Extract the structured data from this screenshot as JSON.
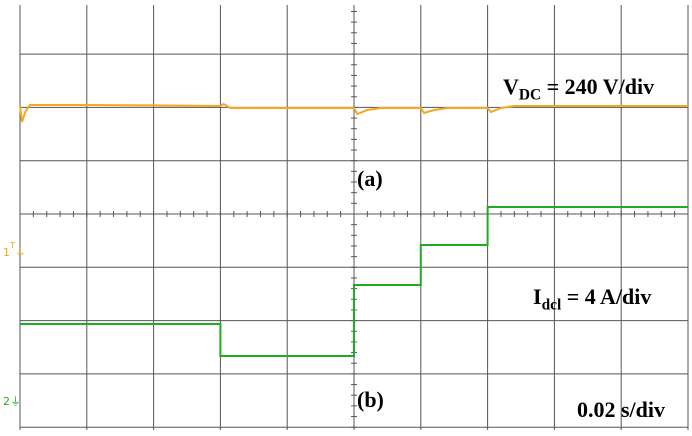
{
  "chart_data": [
    {
      "type": "line",
      "panel_label": "(a)",
      "scale_label_main": "V",
      "scale_label_sub": "DC",
      "scale_label_rest": " = 240 V/div",
      "color": "#f5a623",
      "x_divisions": 10,
      "y_divisions_visible": 4,
      "x_unit": "div",
      "y_unit": "div",
      "series": [
        {
          "x": [
            0.0,
            0.03,
            0.08,
            0.15,
            0.4,
            1.0,
            2.0,
            3.0,
            3.05,
            3.15,
            3.3,
            4.0,
            5.0,
            5.05,
            5.2,
            5.4,
            6.0,
            6.05,
            6.2,
            6.4,
            7.0,
            7.05,
            7.2,
            7.4,
            10.0
          ],
          "y": [
            0.0,
            -0.8,
            -0.3,
            0.05,
            0.05,
            0.05,
            0.03,
            0.0,
            0.1,
            -0.1,
            -0.1,
            -0.1,
            -0.1,
            -0.4,
            -0.2,
            -0.1,
            -0.1,
            -0.35,
            -0.2,
            -0.1,
            -0.1,
            -0.3,
            -0.1,
            0.0,
            0.0
          ]
        }
      ]
    },
    {
      "type": "line",
      "panel_label": "(b)",
      "scale_label_main": "I",
      "scale_label_sub": "dcl",
      "scale_label_rest": " = 4 A/div",
      "color": "#22aa22",
      "x_divisions": 10,
      "x_unit": "div",
      "y_unit": "div",
      "series": [
        {
          "x": [
            0.0,
            3.0,
            3.0,
            5.0,
            5.0,
            6.0,
            6.0,
            7.0,
            7.0,
            10.0
          ],
          "y": [
            -3.6,
            -3.6,
            -4.6,
            -4.6,
            -2.1,
            -2.1,
            -1.0,
            -1.0,
            0.2,
            0.2
          ]
        }
      ]
    }
  ],
  "time_scale": "0.02 s/div",
  "channel_markers": {
    "ch1": "1",
    "ch1_top": "T",
    "ch2": "2"
  },
  "colors": {
    "grid": "#555555",
    "ch1": "#f5a623",
    "ch2": "#22aa22"
  }
}
